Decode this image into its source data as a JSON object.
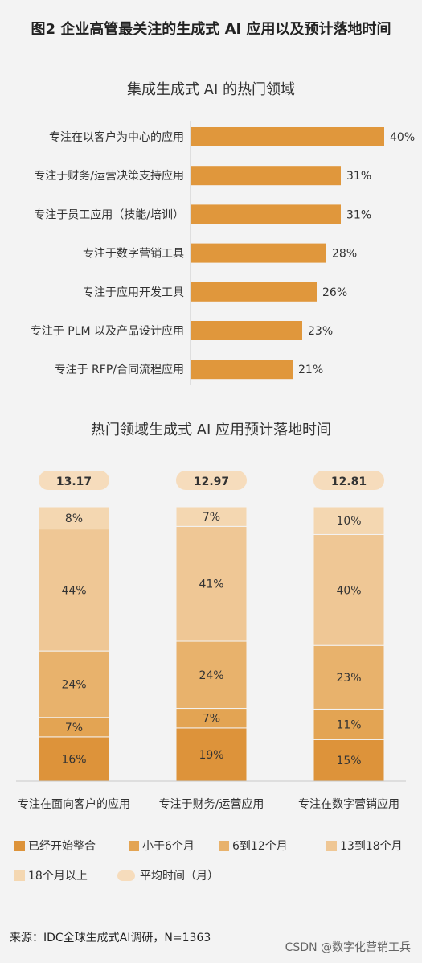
{
  "figure_title": "图2 企业高管最关注的生成式 AI 应用以及预计落地时间",
  "colors": {
    "bar": "#e0973c",
    "seg_1": "#dd933a",
    "seg_2": "#e3a453",
    "seg_3": "#e8b26c",
    "seg_4": "#efc795",
    "seg_5": "#f4d7b1",
    "avg_pill": "#f6dcbc"
  },
  "chart_data": [
    {
      "type": "bar",
      "orientation": "horizontal",
      "title": "集成生成式 AI 的热门领域",
      "categories": [
        "专注在以客户为中心的应用",
        "专注于财务/运营决策支持应用",
        "专注于员工应用（技能/培训）",
        "专注于数字营销工具",
        "专注于应用开发工具",
        "专注于 PLM 以及产品设计应用",
        "专注于 RFP/合同流程应用"
      ],
      "values": [
        40,
        31,
        31,
        28,
        26,
        23,
        21
      ],
      "value_labels": [
        "40%",
        "31%",
        "31%",
        "28%",
        "26%",
        "23%",
        "21%"
      ],
      "unit": "%"
    },
    {
      "type": "bar",
      "stacked": true,
      "title": "热门领域生成式 AI 应用预计落地时间",
      "categories": [
        "专注在面向客户的应用",
        "专注于财务/运营应用",
        "专注在数字营销应用"
      ],
      "averages": [
        13.17,
        12.97,
        12.81
      ],
      "average_labels": [
        "13.17",
        "12.97",
        "12.81"
      ],
      "series": [
        {
          "name": "已经开始整合",
          "values": [
            16,
            19,
            15
          ],
          "labels": [
            "16%",
            "19%",
            "15%"
          ]
        },
        {
          "name": "小于6个月",
          "values": [
            7,
            7,
            11
          ],
          "labels": [
            "7%",
            "7%",
            "11%"
          ]
        },
        {
          "name": "6到12个月",
          "values": [
            24,
            24,
            23
          ],
          "labels": [
            "24%",
            "24%",
            "23%"
          ]
        },
        {
          "name": "13到18个月",
          "values": [
            44,
            41,
            40
          ],
          "labels": [
            "44%",
            "41%",
            "40%"
          ]
        },
        {
          "name": "18个月以上",
          "values": [
            8,
            7,
            10
          ],
          "labels": [
            "8%",
            "7%",
            "10%"
          ]
        }
      ],
      "legend": {
        "placement": "bottom",
        "entries": [
          "已经开始整合",
          "小于6个月",
          "6到12个月",
          "13到18个月",
          "18个月以上",
          "平均时间（月）"
        ]
      }
    }
  ],
  "footer": {
    "source": "来源：IDC全球生成式AI调研，N=1363",
    "watermark": "CSDN @数字化营销工兵"
  }
}
